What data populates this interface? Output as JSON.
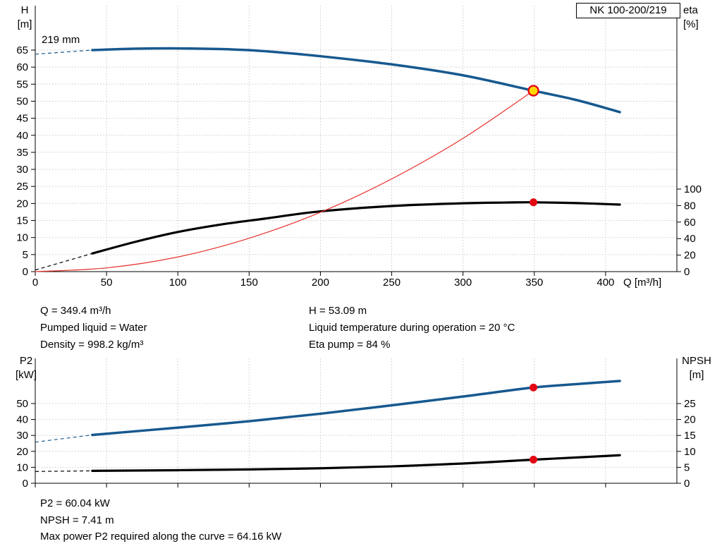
{
  "title_box": "NK 100-200/219",
  "impeller_label": "219 mm",
  "axes_labels": {
    "top_left_1": "H",
    "top_left_2": "[m]",
    "top_right_1": "eta",
    "top_right_2": "[%]",
    "bottom_left_1": "P2",
    "bottom_left_2": "[kW]",
    "bottom_right_1": "NPSH",
    "bottom_right_2": "[m]",
    "x_unit": "Q [m³/h]"
  },
  "info_top": {
    "col1": [
      "Q = 349.4 m³/h",
      "Pumped liquid = Water",
      "Density = 998.2 kg/m³"
    ],
    "col2": [
      "H = 53.09 m",
      "Liquid temperature during operation = 20 °C",
      "Eta pump = 84 %"
    ]
  },
  "info_bottom": [
    "P2 = 60.04 kW",
    "NPSH = 7.41 m",
    "Max power P2 required along the curve = 64.16 kW"
  ],
  "colors": {
    "curve_blue": "#17598f",
    "curve_black": "#000000",
    "curve_red": "#e8312a",
    "duty_fill": "#ffd800",
    "marker_red": "#e30613",
    "grid": "#c9c9c9"
  },
  "chart_data": [
    {
      "type": "line",
      "title": "NK 100-200/219",
      "xlabel": "Q [m³/h]",
      "x_range": [
        0,
        450
      ],
      "x_ticks": [
        0,
        50,
        100,
        150,
        200,
        250,
        300,
        350,
        400
      ],
      "y_left": {
        "label": "H [m]",
        "range": [
          0,
          78.04
        ],
        "ticks": [
          0,
          5,
          10,
          15,
          20,
          25,
          30,
          35,
          40,
          45,
          50,
          55,
          60,
          65
        ]
      },
      "y_right": {
        "label": "eta [%]",
        "range": [
          0,
          322.2
        ],
        "ticks": [
          0,
          20,
          40,
          60,
          80,
          100
        ]
      },
      "series": [
        {
          "name": "head-219mm",
          "axis": "left",
          "color": "#17598f",
          "width": 3.5,
          "dash_lead": [
            [
              0,
              63.8
            ]
          ],
          "points": [
            [
              40,
              65.0
            ],
            [
              70,
              65.4
            ],
            [
              100,
              65.5
            ],
            [
              130,
              65.3
            ],
            [
              160,
              64.7
            ],
            [
              200,
              63.2
            ],
            [
              250,
              60.8
            ],
            [
              300,
              57.6
            ],
            [
              349.4,
              53.09
            ],
            [
              380,
              50.3
            ],
            [
              410,
              46.8
            ]
          ]
        },
        {
          "name": "efficiency",
          "axis": "right",
          "color": "#000000",
          "width": 3.2,
          "dash_lead": [
            [
              0,
              2
            ]
          ],
          "points": [
            [
              40,
              22
            ],
            [
              70,
              36
            ],
            [
              100,
              48
            ],
            [
              130,
              57
            ],
            [
              160,
              64
            ],
            [
              200,
              73
            ],
            [
              250,
              79.5
            ],
            [
              300,
              82.8
            ],
            [
              330,
              83.7
            ],
            [
              349.4,
              84
            ],
            [
              380,
              83
            ],
            [
              410,
              81.2
            ]
          ]
        },
        {
          "name": "system-curve",
          "axis": "left",
          "color": "#e8312a",
          "width": 1.2,
          "points": [
            [
              0,
              0
            ],
            [
              50,
              1.1
            ],
            [
              100,
              4.3
            ],
            [
              150,
              9.8
            ],
            [
              200,
              17.4
            ],
            [
              250,
              27.2
            ],
            [
              300,
              39.1
            ],
            [
              349.4,
              53.09
            ]
          ]
        }
      ],
      "markers": [
        {
          "q": 349.4,
          "v": 53.09,
          "axis": "left",
          "kind": "duty"
        },
        {
          "q": 349.4,
          "v": 84,
          "axis": "right",
          "kind": "point"
        }
      ]
    },
    {
      "type": "line",
      "title": "",
      "xlabel": "",
      "x_range": [
        0,
        450
      ],
      "x_ticks": [
        0,
        50,
        100,
        150,
        200,
        250,
        300,
        350,
        400
      ],
      "y_left": {
        "label": "P2 [kW]",
        "range": [
          0,
          78.3
        ],
        "ticks": [
          0,
          10,
          20,
          30,
          40,
          50
        ]
      },
      "y_right": {
        "label": "NPSH [m]",
        "range": [
          0,
          39.16
        ],
        "ticks": [
          0,
          5,
          10,
          15,
          20,
          25
        ]
      },
      "series": [
        {
          "name": "p2-power",
          "axis": "left",
          "color": "#17598f",
          "width": 3.5,
          "dash_lead": [
            [
              0,
              25.8
            ]
          ],
          "points": [
            [
              40,
              30.3
            ],
            [
              100,
              34.9
            ],
            [
              150,
              38.9
            ],
            [
              200,
              43.6
            ],
            [
              250,
              48.9
            ],
            [
              300,
              54.4
            ],
            [
              349.4,
              60.04
            ],
            [
              380,
              62.2
            ],
            [
              410,
              64.16
            ]
          ]
        },
        {
          "name": "npsh",
          "axis": "right",
          "color": "#000000",
          "width": 3.2,
          "dash_lead": [
            [
              0,
              3.7
            ]
          ],
          "points": [
            [
              40,
              3.9
            ],
            [
              100,
              4.1
            ],
            [
              150,
              4.35
            ],
            [
              200,
              4.7
            ],
            [
              250,
              5.3
            ],
            [
              300,
              6.2
            ],
            [
              349.4,
              7.41
            ],
            [
              380,
              8.1
            ],
            [
              410,
              8.8
            ]
          ]
        }
      ],
      "markers": [
        {
          "q": 349.4,
          "v": 60.04,
          "axis": "left",
          "kind": "point"
        },
        {
          "q": 349.4,
          "v": 7.41,
          "axis": "right",
          "kind": "point"
        }
      ]
    }
  ]
}
